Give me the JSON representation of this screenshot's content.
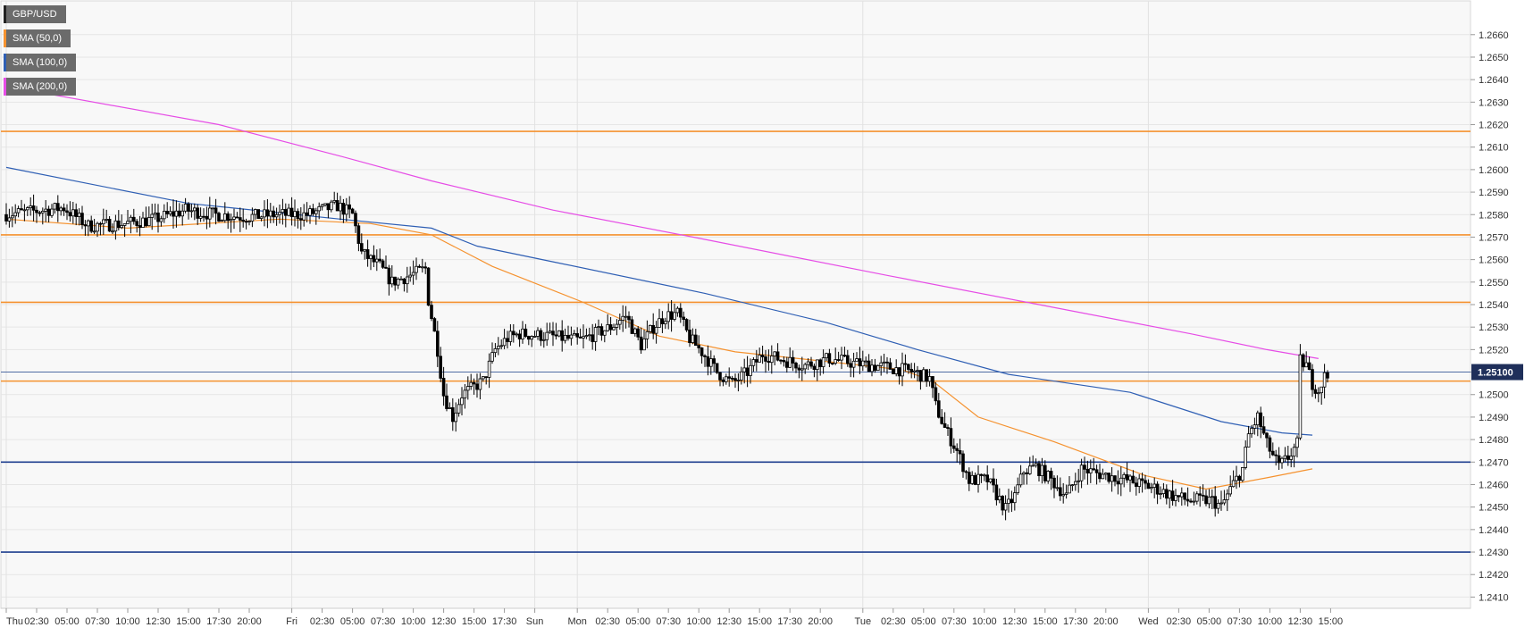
{
  "legend": [
    {
      "label": "GBP/USD",
      "color": "#222222"
    },
    {
      "label": "SMA (50,0)",
      "color": "#f5922f"
    },
    {
      "label": "SMA (100,0)",
      "color": "#2f5fb4"
    },
    {
      "label": "SMA (200,0)",
      "color": "#e64de6"
    }
  ],
  "current_price_label": "1.25100",
  "chart_data": {
    "type": "candlestick",
    "symbol": "GBP/USD",
    "ylim": [
      1.2405,
      1.2675
    ],
    "ytick_labels": [
      "1.2410",
      "1.2420",
      "1.2430",
      "1.2440",
      "1.2450",
      "1.2460",
      "1.2470",
      "1.2480",
      "1.2490",
      "1.2500",
      "1.2510",
      "1.2520",
      "1.2530",
      "1.2540",
      "1.2550",
      "1.2560",
      "1.2570",
      "1.2580",
      "1.2590",
      "1.2600",
      "1.2610",
      "1.2620",
      "1.2630",
      "1.2640",
      "1.2650",
      "1.2660"
    ],
    "ytick_values": [
      1.241,
      1.242,
      1.243,
      1.244,
      1.245,
      1.246,
      1.247,
      1.248,
      1.249,
      1.25,
      1.251,
      1.252,
      1.253,
      1.254,
      1.255,
      1.256,
      1.257,
      1.258,
      1.259,
      1.26,
      1.261,
      1.262,
      1.263,
      1.264,
      1.265,
      1.266
    ],
    "xtick_labels": [
      "Thu",
      "02:30",
      "05:00",
      "07:30",
      "10:00",
      "12:30",
      "15:00",
      "17:30",
      "20:00",
      "Fri",
      "02:30",
      "05:00",
      "07:30",
      "10:00",
      "12:30",
      "15:00",
      "17:30",
      "Sun",
      "Mon",
      "02:30",
      "05:00",
      "07:30",
      "10:00",
      "12:30",
      "15:00",
      "17:30",
      "20:00",
      "Tue",
      "02:30",
      "05:00",
      "07:30",
      "10:00",
      "12:30",
      "15:00",
      "17:30",
      "20:00",
      "Wed",
      "02:30",
      "05:00",
      "07:30",
      "10:00",
      "12:30",
      "15:00"
    ],
    "xtick_index": [
      0,
      10,
      20,
      30,
      40,
      50,
      60,
      70,
      80,
      94,
      104,
      114,
      124,
      134,
      144,
      154,
      164,
      174,
      188,
      198,
      208,
      218,
      228,
      238,
      248,
      258,
      268,
      282,
      292,
      302,
      312,
      322,
      332,
      342,
      352,
      362,
      376,
      386,
      396,
      406,
      416,
      426,
      436
    ],
    "day_separators": [
      0,
      94,
      174,
      188,
      282,
      376
    ],
    "horizontal_levels": [
      {
        "value": 1.2617,
        "color": "#f5922f"
      },
      {
        "value": 1.2571,
        "color": "#f5922f"
      },
      {
        "value": 1.2541,
        "color": "#f5922f"
      },
      {
        "value": 1.2506,
        "color": "#f5922f"
      },
      {
        "value": 1.247,
        "color": "#1f3f8f"
      },
      {
        "value": 1.243,
        "color": "#1f3f8f"
      }
    ],
    "current_price": 1.251,
    "sma_50": [
      [
        0,
        1.2578
      ],
      [
        40,
        1.2574
      ],
      [
        90,
        1.2578
      ],
      [
        120,
        1.2576
      ],
      [
        140,
        1.2571
      ],
      [
        160,
        1.2557
      ],
      [
        190,
        1.2541
      ],
      [
        215,
        1.2526
      ],
      [
        240,
        1.2519
      ],
      [
        275,
        1.2514
      ],
      [
        295,
        1.2511
      ],
      [
        305,
        1.2506
      ],
      [
        320,
        1.249
      ],
      [
        345,
        1.2479
      ],
      [
        375,
        1.2464
      ],
      [
        395,
        1.2458
      ],
      [
        415,
        1.2463
      ],
      [
        430,
        1.2467
      ]
    ],
    "sma_100": [
      [
        0,
        1.2601
      ],
      [
        60,
        1.2585
      ],
      [
        110,
        1.2578
      ],
      [
        140,
        1.2574
      ],
      [
        155,
        1.2566
      ],
      [
        180,
        1.2559
      ],
      [
        230,
        1.2545
      ],
      [
        270,
        1.2532
      ],
      [
        300,
        1.252
      ],
      [
        330,
        1.2509
      ],
      [
        370,
        1.2501
      ],
      [
        400,
        1.2488
      ],
      [
        420,
        1.2483
      ],
      [
        430,
        1.2482
      ]
    ],
    "sma_200": [
      [
        0,
        1.2637
      ],
      [
        70,
        1.262
      ],
      [
        110,
        1.2606
      ],
      [
        140,
        1.2595
      ],
      [
        180,
        1.2582
      ],
      [
        230,
        1.2569
      ],
      [
        290,
        1.2553
      ],
      [
        340,
        1.254
      ],
      [
        390,
        1.2527
      ],
      [
        415,
        1.252
      ],
      [
        432,
        1.2516
      ]
    ],
    "candle_anchors": [
      [
        0,
        1.258
      ],
      [
        20,
        1.2583
      ],
      [
        28,
        1.2575
      ],
      [
        40,
        1.2576
      ],
      [
        50,
        1.2578
      ],
      [
        60,
        1.2582
      ],
      [
        70,
        1.258
      ],
      [
        80,
        1.2579
      ],
      [
        90,
        1.258
      ],
      [
        100,
        1.258
      ],
      [
        110,
        1.2584
      ],
      [
        115,
        1.258
      ],
      [
        118,
        1.2563
      ],
      [
        124,
        1.2557
      ],
      [
        128,
        1.255
      ],
      [
        134,
        1.2553
      ],
      [
        139,
        1.2556
      ],
      [
        140,
        1.2542
      ],
      [
        143,
        1.252
      ],
      [
        145,
        1.25
      ],
      [
        148,
        1.249
      ],
      [
        151,
        1.25
      ],
      [
        158,
        1.2506
      ],
      [
        162,
        1.252
      ],
      [
        166,
        1.2525
      ],
      [
        170,
        1.2527
      ],
      [
        180,
        1.2526
      ],
      [
        190,
        1.2524
      ],
      [
        200,
        1.253
      ],
      [
        205,
        1.2535
      ],
      [
        210,
        1.2522
      ],
      [
        214,
        1.253
      ],
      [
        218,
        1.2535
      ],
      [
        222,
        1.2536
      ],
      [
        226,
        1.2525
      ],
      [
        230,
        1.2519
      ],
      [
        235,
        1.251
      ],
      [
        240,
        1.2505
      ],
      [
        245,
        1.251
      ],
      [
        250,
        1.2518
      ],
      [
        258,
        1.2515
      ],
      [
        264,
        1.2513
      ],
      [
        272,
        1.2516
      ],
      [
        280,
        1.2514
      ],
      [
        292,
        1.2512
      ],
      [
        300,
        1.251
      ],
      [
        305,
        1.2507
      ],
      [
        307,
        1.2495
      ],
      [
        310,
        1.2485
      ],
      [
        314,
        1.2475
      ],
      [
        318,
        1.2462
      ],
      [
        324,
        1.2462
      ],
      [
        330,
        1.2449
      ],
      [
        333,
        1.2455
      ],
      [
        336,
        1.2466
      ],
      [
        340,
        1.2468
      ],
      [
        345,
        1.2462
      ],
      [
        350,
        1.2455
      ],
      [
        355,
        1.2467
      ],
      [
        360,
        1.2465
      ],
      [
        370,
        1.2462
      ],
      [
        380,
        1.2458
      ],
      [
        385,
        1.2455
      ],
      [
        390,
        1.2453
      ],
      [
        398,
        1.2453
      ],
      [
        401,
        1.245
      ],
      [
        404,
        1.2458
      ],
      [
        408,
        1.2467
      ],
      [
        410,
        1.2482
      ],
      [
        413,
        1.249
      ],
      [
        416,
        1.2478
      ],
      [
        420,
        1.2468
      ],
      [
        423,
        1.2472
      ],
      [
        426,
        1.2478
      ],
      [
        427,
        1.2515
      ],
      [
        429,
        1.2513
      ],
      [
        431,
        1.2505
      ],
      [
        433,
        1.2502
      ],
      [
        435,
        1.2508
      ]
    ]
  }
}
